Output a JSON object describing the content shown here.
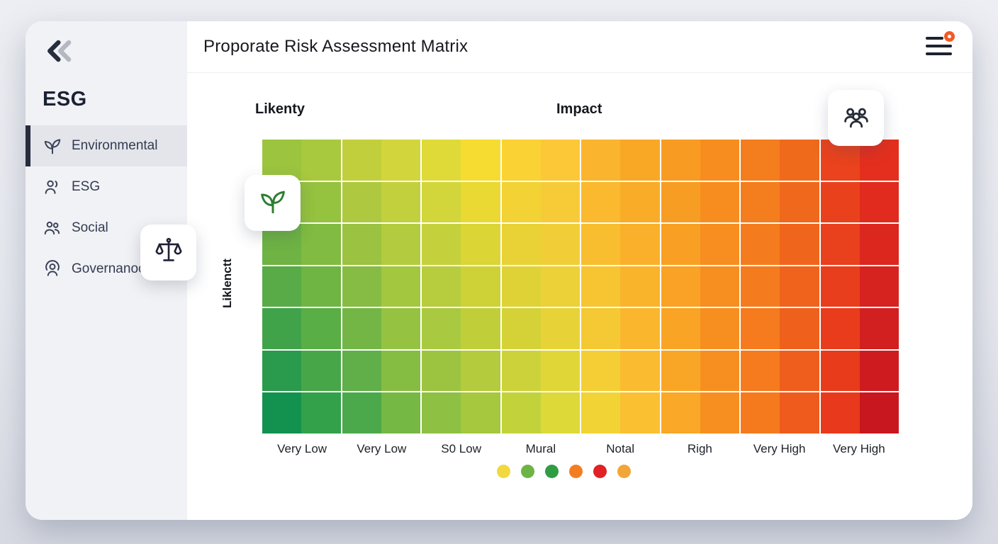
{
  "header": {
    "title": "Proporate Risk Assessment Matrix",
    "menu_icon": "hamburger-menu-icon",
    "badge_color": "#f15a24"
  },
  "sidebar": {
    "collapse_icon": "chevrons-left-icon",
    "heading": "ESG",
    "items": [
      {
        "label": "Environmental",
        "icon": "leaf-icon",
        "active": true
      },
      {
        "label": "ESG",
        "icon": "user-icon",
        "active": false
      },
      {
        "label": "Social",
        "icon": "users-icon",
        "active": false
      },
      {
        "label": "Governanoc",
        "icon": "shield-user-icon",
        "active": false
      }
    ]
  },
  "floating_cards": [
    {
      "icon": "leaf-icon",
      "color": "#2e7d32"
    },
    {
      "icon": "scales-icon",
      "color": "#1d2333"
    },
    {
      "icon": "people-group-icon",
      "color": "#272c38"
    }
  ],
  "chart_data": {
    "type": "heatmap",
    "axis_titles": {
      "top_left": "Likenty",
      "top_center": "Impact",
      "left_rotated": "Liklenctt"
    },
    "x_labels": [
      "Very Low",
      "Very Low",
      "S0 Low",
      "Mural",
      "Notal",
      "Righ",
      "Very High",
      "Very High"
    ],
    "grid": {
      "rows": 7,
      "cols": 16,
      "main_columns": 8,
      "gridline_color": "#ffffff",
      "row_interpolation": "linear-rgb-top-to-bottom",
      "top_row_colors": [
        "#9cc43e",
        "#a8c93d",
        "#c2cf3c",
        "#d2d53b",
        "#e0da39",
        "#f6dc30",
        "#fbd233",
        "#fcc838",
        "#fbb42e",
        "#f9a826",
        "#f89b22",
        "#f78d1f",
        "#f47d1e",
        "#f06a1c",
        "#ea431d",
        "#e52f1e"
      ],
      "bottom_row_colors": [
        "#13924f",
        "#33a04a",
        "#4ca94b",
        "#76b844",
        "#8ec043",
        "#a5c83e",
        "#c2d23b",
        "#dcd938",
        "#f2d335",
        "#fbbf32",
        "#f9a827",
        "#f78f20",
        "#f57a1e",
        "#ef5b1c",
        "#e8391c",
        "#c9171f"
      ]
    },
    "legend_dot_colors": [
      "#f0d93f",
      "#6db446",
      "#2e9e44",
      "#f57d21",
      "#e02125",
      "#f3a638"
    ]
  }
}
